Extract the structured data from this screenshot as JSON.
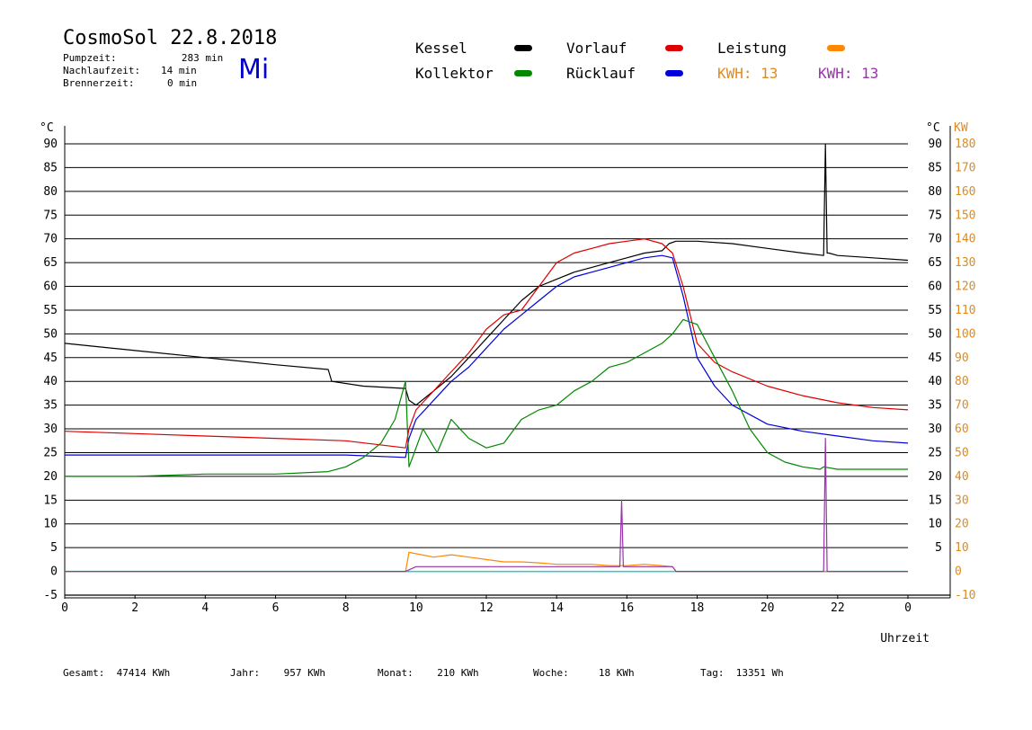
{
  "header": {
    "title": "CosmoSol 22.8.2018",
    "weekday": "Mi",
    "pump_label": "Pumpzeit:",
    "pump_value": "283 min",
    "overrun_label": "Nachlaufzeit:",
    "overrun_value": "14 min",
    "burner_label": "Brennerzeit:",
    "burner_value": "0 min"
  },
  "legend": {
    "kessel": {
      "label": "Kessel",
      "color": "#000000"
    },
    "vorlauf": {
      "label": "Vorlauf",
      "color": "#dd0000"
    },
    "leistung": {
      "label": "Leistung",
      "color": "#ff8800"
    },
    "kollektor": {
      "label": "Kollektor",
      "color": "#008800"
    },
    "ruecklauf": {
      "label": "Rücklauf",
      "color": "#0000dd"
    },
    "kwh1": {
      "label": "KWH:",
      "value": "13",
      "color": "#e08a1e"
    },
    "kwh2": {
      "label": "KWH:",
      "value": "13",
      "color": "#9933aa"
    }
  },
  "footer": {
    "gesamt_label": "Gesamt:",
    "gesamt_value": "47414 KWh",
    "jahr_label": "Jahr:",
    "jahr_value": "957 KWh",
    "monat_label": "Monat:",
    "monat_value": "210 KWh",
    "woche_label": "Woche:",
    "woche_value": "18 KWh",
    "tag_label": "Tag:",
    "tag_value": "13351 Wh"
  },
  "chart_data": {
    "type": "line",
    "xlabel": "Uhrzeit",
    "ylabel_left": "°C",
    "ylabel_right_temp": "°C",
    "ylabel_right_power": "KW",
    "xlim": [
      0,
      24
    ],
    "ylim": [
      -5,
      90
    ],
    "x_ticks": [
      "0",
      "2",
      "4",
      "6",
      "8",
      "10",
      "12",
      "14",
      "16",
      "18",
      "20",
      "22",
      "0"
    ],
    "y_ticks_left": [
      "90",
      "85",
      "80",
      "75",
      "70",
      "65",
      "60",
      "55",
      "50",
      "45",
      "40",
      "35",
      "30",
      "25",
      "20",
      "15",
      "10",
      "5",
      "0",
      "-5"
    ],
    "y_ticks_right_temp": [
      "90",
      "85",
      "80",
      "75",
      "70",
      "65",
      "60",
      "55",
      "50",
      "45",
      "40",
      "35",
      "30",
      "25",
      "20",
      "15",
      "10",
      "5"
    ],
    "y_ticks_right_power": [
      "180",
      "170",
      "160",
      "150",
      "140",
      "130",
      "120",
      "110",
      "100",
      "90",
      "80",
      "70",
      "60",
      "50",
      "40",
      "30",
      "20",
      "10",
      "0",
      "-10"
    ],
    "grid": true,
    "series": [
      {
        "name": "Kessel",
        "color": "#000000",
        "x": [
          0,
          2,
          4,
          6,
          7.5,
          7.6,
          8.5,
          9.7,
          9.8,
          10,
          10.5,
          11,
          11.5,
          12,
          12.5,
          13,
          13.5,
          14,
          14.5,
          15,
          15.5,
          16,
          16.5,
          17,
          17.2,
          17.4,
          18,
          19,
          20,
          21,
          21.6,
          21.65,
          21.7,
          21.75,
          22,
          23,
          24
        ],
        "y": [
          48,
          46.5,
          45,
          43.5,
          42.5,
          40,
          39,
          38.5,
          36,
          35,
          38,
          41,
          45,
          49,
          53,
          57,
          60,
          61.5,
          63,
          64,
          65,
          66,
          67,
          67.5,
          69,
          69.5,
          69.5,
          69,
          68,
          67,
          66.5,
          90,
          67,
          67,
          66.5,
          66,
          65.5
        ]
      },
      {
        "name": "Vorlauf",
        "color": "#dd0000",
        "x": [
          0,
          2,
          4,
          6,
          8,
          9.7,
          9.8,
          10,
          10.5,
          11,
          11.5,
          12,
          12.5,
          13,
          13.5,
          14,
          14.5,
          15,
          15.5,
          16,
          16.5,
          17,
          17.3,
          17.6,
          18,
          18.5,
          19,
          20,
          21,
          22,
          23,
          24
        ],
        "y": [
          29.5,
          29,
          28.5,
          28,
          27.5,
          26,
          30,
          34,
          38,
          42,
          46,
          51,
          54,
          55,
          60,
          65,
          67,
          68,
          69,
          69.5,
          70,
          69,
          67,
          60,
          48,
          44,
          42,
          39,
          37,
          35.5,
          34.5,
          34
        ]
      },
      {
        "name": "Rücklauf",
        "color": "#0000dd",
        "x": [
          0,
          2,
          4,
          6,
          8,
          9.7,
          9.8,
          10,
          10.5,
          11,
          11.5,
          12,
          12.5,
          13,
          13.5,
          14,
          14.5,
          15,
          15.5,
          16,
          16.5,
          17,
          17.3,
          17.6,
          18,
          18.5,
          19,
          20,
          21,
          22,
          23,
          24
        ],
        "y": [
          24.5,
          24.5,
          24.5,
          24.5,
          24.5,
          24,
          28,
          32,
          36,
          40,
          43,
          47,
          51,
          54,
          57,
          60,
          62,
          63,
          64,
          65,
          66,
          66.5,
          66,
          58,
          45,
          39,
          35,
          31,
          29.5,
          28.5,
          27.5,
          27
        ]
      },
      {
        "name": "Kollektor",
        "color": "#008800",
        "x": [
          0,
          2,
          4,
          6,
          7.5,
          8,
          8.5,
          9,
          9.4,
          9.7,
          9.8,
          10.2,
          10.6,
          11,
          11.5,
          12,
          12.5,
          13,
          13.5,
          14,
          14.5,
          15,
          15.5,
          16,
          16.5,
          17,
          17.3,
          17.6,
          18,
          18.5,
          19,
          19.5,
          20,
          20.5,
          21,
          21.5,
          21.6,
          22,
          23,
          24
        ],
        "y": [
          20,
          20,
          20.5,
          20.5,
          21,
          22,
          24,
          27,
          32,
          40,
          22,
          30,
          25,
          32,
          28,
          26,
          27,
          32,
          34,
          35,
          38,
          40,
          43,
          44,
          46,
          48,
          50,
          53,
          52,
          45,
          38,
          30,
          25,
          23,
          22,
          21.5,
          22,
          21.5,
          21.5,
          21.5
        ]
      },
      {
        "name": "Leistung",
        "color": "#ff8800",
        "x": [
          0,
          9.7,
          9.8,
          10.5,
          11,
          11.5,
          12,
          12.5,
          13,
          13.5,
          14,
          14.5,
          15,
          15.5,
          16,
          16.5,
          17,
          17.3,
          17.4,
          24
        ],
        "y": [
          0,
          0,
          4,
          3,
          3.5,
          3,
          2.5,
          2,
          2,
          1.8,
          1.5,
          1.5,
          1.5,
          1.2,
          1.2,
          1.5,
          1.2,
          1,
          0,
          0
        ]
      },
      {
        "name": "KWH",
        "color": "#9933aa",
        "x": [
          0,
          9.7,
          10,
          12,
          14,
          15.8,
          15.85,
          15.9,
          17.3,
          17.4,
          21.6,
          21.65,
          21.7,
          24
        ],
        "y": [
          0,
          0,
          1,
          1,
          1,
          1,
          15,
          1,
          1,
          0,
          0,
          28,
          0,
          0
        ]
      }
    ]
  }
}
